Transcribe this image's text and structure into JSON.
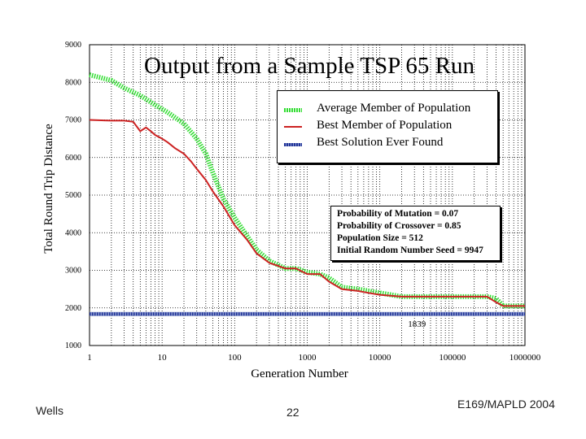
{
  "chart_data": {
    "type": "line",
    "title": "Output from a Sample TSP 65 Run",
    "xlabel": "Generation Number",
    "ylabel": "Total Round Trip Distance",
    "xscale": "log",
    "xlim": [
      1,
      1000000
    ],
    "ylim": [
      1000,
      9000
    ],
    "x_tick_labels": [
      "1",
      "10",
      "100",
      "1000",
      "10000",
      "100000",
      "1000000"
    ],
    "y_tick_labels": [
      "1000",
      "2000",
      "3000",
      "4000",
      "5000",
      "6000",
      "7000",
      "8000",
      "9000"
    ],
    "grid": true,
    "series": [
      {
        "name": "Average Member of Population",
        "color": "#33dd33",
        "style": "dotted",
        "x": [
          1,
          2,
          3,
          5,
          8,
          12,
          20,
          30,
          40,
          50,
          70,
          100,
          150,
          200,
          300,
          500,
          700,
          1000,
          1500,
          2000,
          3000,
          5000,
          7000,
          10000,
          20000,
          50000,
          100000,
          200000,
          300000,
          400000,
          500000,
          1000000
        ],
        "values": [
          8200,
          8050,
          7850,
          7650,
          7400,
          7200,
          6900,
          6500,
          6100,
          5600,
          4900,
          4400,
          3900,
          3550,
          3250,
          3050,
          3050,
          2950,
          2900,
          2800,
          2550,
          2500,
          2450,
          2400,
          2300,
          2300,
          2300,
          2300,
          2300,
          2250,
          2050,
          2050
        ]
      },
      {
        "name": "Best Member of Population",
        "color": "#cc2222",
        "style": "solid",
        "x": [
          1,
          2,
          3,
          4,
          5,
          6,
          7,
          8,
          10,
          12,
          15,
          20,
          25,
          30,
          40,
          50,
          70,
          100,
          150,
          200,
          300,
          500,
          700,
          1000,
          1500,
          2000,
          3000,
          5000,
          7000,
          10000,
          20000,
          50000,
          100000,
          200000,
          300000,
          400000,
          500000,
          1000000
        ],
        "values": [
          7000,
          6980,
          6980,
          6950,
          6700,
          6800,
          6700,
          6600,
          6500,
          6400,
          6250,
          6100,
          5900,
          5700,
          5400,
          5100,
          4700,
          4200,
          3800,
          3450,
          3200,
          3050,
          3050,
          2900,
          2900,
          2700,
          2500,
          2450,
          2400,
          2350,
          2300,
          2300,
          2300,
          2300,
          2300,
          2150,
          2050,
          2050
        ]
      },
      {
        "name": "Best Solution Ever Found",
        "color": "#223399",
        "style": "dotted",
        "x": [
          1,
          1000000
        ],
        "values": [
          1839,
          1839
        ]
      }
    ],
    "annotations": [
      {
        "text": "1839",
        "x": 30000,
        "y": 1839
      }
    ]
  },
  "params": {
    "mutation": "Probability of Mutation = 0.07",
    "crossover": "Probability of Crossover = 0.85",
    "population": "Population Size = 512",
    "seed": "Initial Random Number Seed = 9947"
  },
  "footer": {
    "left": "Wells",
    "center": "22",
    "right": "E169/MAPLD 2004"
  }
}
